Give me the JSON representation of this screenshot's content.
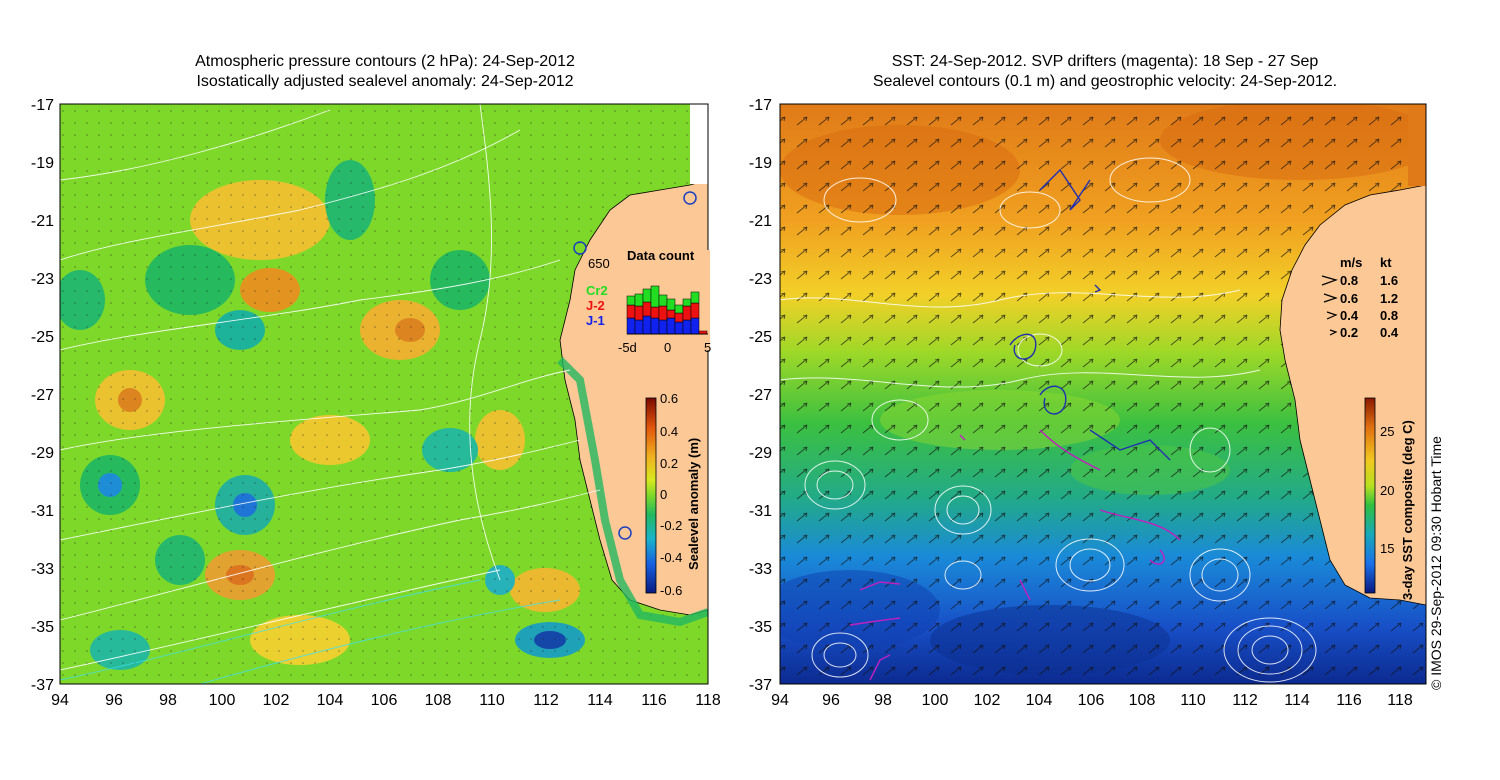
{
  "left_panel": {
    "title_line1": "Atmospheric pressure contours (2 hPa): 24-Sep-2012",
    "title_line2": "Isostatically adjusted sealevel anomaly: 24-Sep-2012",
    "x_ticks": [
      "94",
      "96",
      "98",
      "100",
      "102",
      "104",
      "106",
      "108",
      "110",
      "112",
      "114",
      "116",
      "118"
    ],
    "y_ticks": [
      "-17",
      "-19",
      "-21",
      "-23",
      "-25",
      "-27",
      "-29",
      "-31",
      "-33",
      "-35",
      "-37"
    ],
    "station_label": "650",
    "data_count": {
      "title": "Data count",
      "legend": [
        "Cr2",
        "J-2",
        "J-1"
      ],
      "legend_colors": [
        "#22dd22",
        "#ee1111",
        "#1122ee"
      ],
      "x_labels": [
        "-5d",
        "0",
        "5"
      ]
    },
    "colorbar": {
      "label": "Sealevel anomaly (m)",
      "ticks": [
        "0.6",
        "0.4",
        "0.2",
        "0",
        "-0.2",
        "-0.4",
        "-0.6"
      ]
    }
  },
  "right_panel": {
    "title_line1": "SST: 24-Sep-2012. SVP drifters (magenta): 18 Sep - 27 Sep",
    "title_line2": "Sealevel contours (0.1 m) and geostrophic velocity: 24-Sep-2012.",
    "x_ticks": [
      "94",
      "96",
      "98",
      "100",
      "102",
      "104",
      "106",
      "108",
      "110",
      "112",
      "114",
      "116",
      "118"
    ],
    "y_ticks": [
      "-17",
      "-19",
      "-21",
      "-23",
      "-25",
      "-27",
      "-29",
      "-31",
      "-33",
      "-35",
      "-37"
    ],
    "velocity_legend": {
      "header_ms": "m/s",
      "header_kt": "kt",
      "rows": [
        {
          "ms": "0.8",
          "kt": "1.6"
        },
        {
          "ms": "0.6",
          "kt": "1.2"
        },
        {
          "ms": "0.4",
          "kt": "0.8"
        },
        {
          "ms": "0.2",
          "kt": "0.4"
        }
      ]
    },
    "colorbar": {
      "label": "3-day SST composite (deg C)",
      "ticks": [
        "25",
        "20",
        "15"
      ]
    }
  },
  "footer": "© IMOS 29-Sep-2012 09:30 Hobart Time"
}
